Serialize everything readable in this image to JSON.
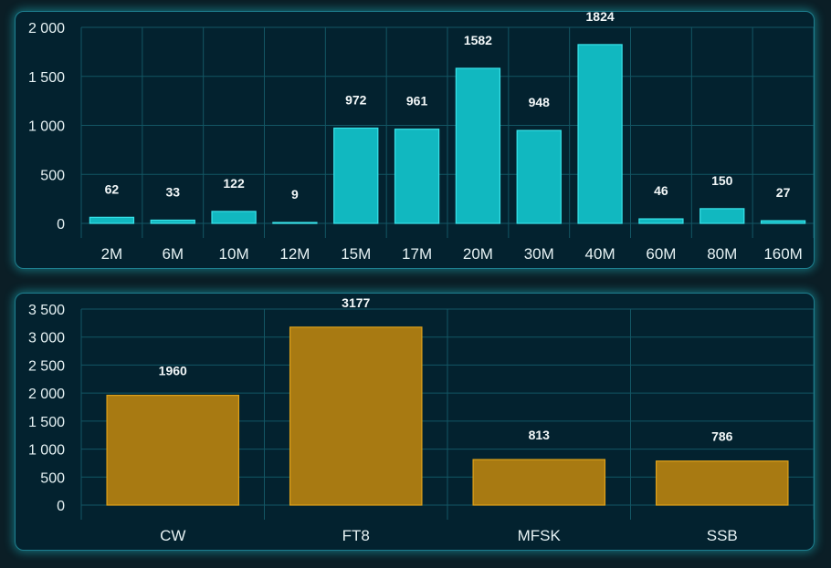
{
  "colors": {
    "panel_bg": "#03222f",
    "grid": "#135664",
    "band_bar": "#11b8c0",
    "mode_bar": "#a87a12"
  },
  "chart_data": [
    {
      "type": "bar",
      "categories": [
        "2M",
        "6M",
        "10M",
        "12M",
        "15M",
        "17M",
        "20M",
        "30M",
        "40M",
        "60M",
        "80M",
        "160M"
      ],
      "values": [
        62,
        33,
        122,
        9,
        972,
        961,
        1582,
        948,
        1824,
        46,
        150,
        27
      ],
      "ylim": [
        0,
        2000
      ],
      "yticks": [
        0,
        500,
        1000,
        1500,
        2000
      ],
      "ytick_labels": [
        "0",
        "500",
        "1 000",
        "1 500",
        "2 000"
      ],
      "data_labels": true,
      "grid": true
    },
    {
      "type": "bar",
      "categories": [
        "CW",
        "FT8",
        "MFSK",
        "SSB"
      ],
      "values": [
        1960,
        3177,
        813,
        786
      ],
      "ylim": [
        0,
        3500
      ],
      "yticks": [
        0,
        500,
        1000,
        1500,
        2000,
        2500,
        3000,
        3500
      ],
      "ytick_labels": [
        "0",
        "500",
        "1 000",
        "1 500",
        "2 000",
        "2 500",
        "3 000",
        "3 500"
      ],
      "data_labels": true,
      "grid": true
    }
  ]
}
